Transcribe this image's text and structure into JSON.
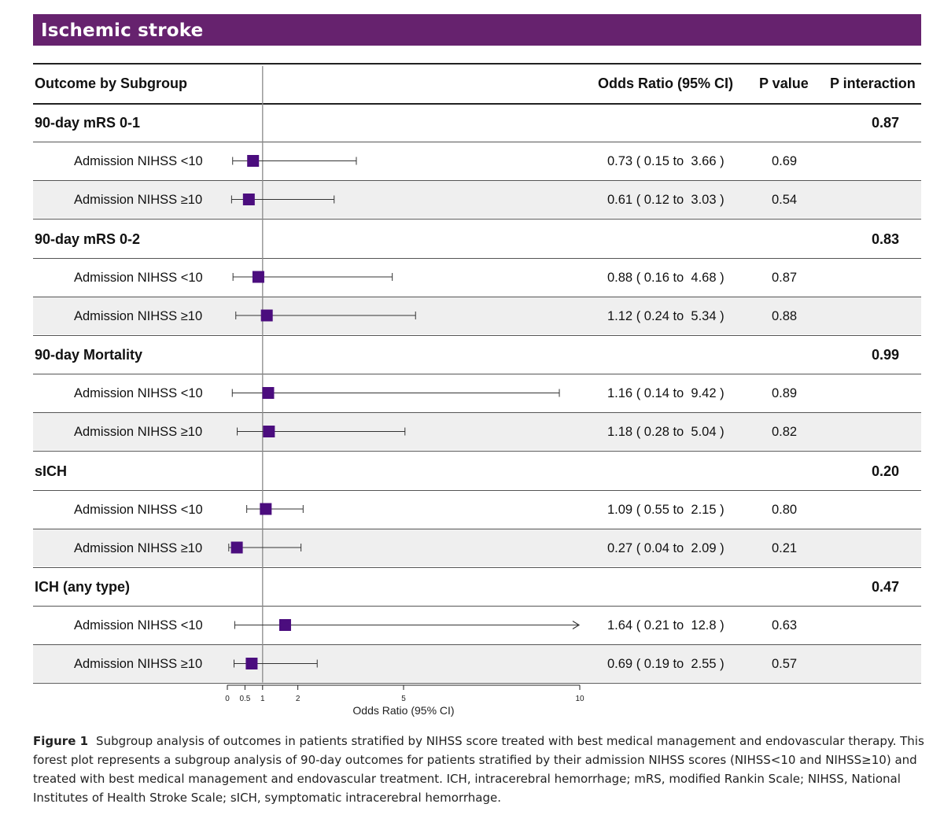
{
  "banner": "Ischemic stroke",
  "header": {
    "outcome": "Outcome by Subgroup",
    "or": "Odds Ratio (95% CI)",
    "p": "P value",
    "pint": "P interaction"
  },
  "colors": {
    "banner": "#66226e",
    "marker": "#4b0d7e",
    "band": "#efefef"
  },
  "sections": [
    {
      "title": "90-day mRS 0-1",
      "p_interaction": "0.87",
      "rows": [
        {
          "label": "Admission NIHSS <10",
          "or_text": "0.73 ( 0.15 to  3.66 )",
          "p": "0.69"
        },
        {
          "label": "Admission NIHSS ≥10",
          "or_text": "0.61 ( 0.12 to  3.03 )",
          "p": "0.54"
        }
      ]
    },
    {
      "title": "90-day mRS 0-2",
      "p_interaction": "0.83",
      "rows": [
        {
          "label": "Admission NIHSS <10",
          "or_text": "0.88 ( 0.16 to  4.68 )",
          "p": "0.87"
        },
        {
          "label": "Admission NIHSS ≥10",
          "or_text": "1.12 ( 0.24 to  5.34 )",
          "p": "0.88"
        }
      ]
    },
    {
      "title": "90-day Mortality",
      "p_interaction": "0.99",
      "rows": [
        {
          "label": "Admission NIHSS <10",
          "or_text": "1.16 ( 0.14 to  9.42 )",
          "p": "0.89"
        },
        {
          "label": "Admission NIHSS ≥10",
          "or_text": "1.18 ( 0.28 to  5.04 )",
          "p": "0.82"
        }
      ]
    },
    {
      "title": "sICH",
      "p_interaction": "0.20",
      "rows": [
        {
          "label": "Admission NIHSS <10",
          "or_text": "1.09 ( 0.55 to  2.15 )",
          "p": "0.80"
        },
        {
          "label": "Admission NIHSS ≥10",
          "or_text": "0.27 ( 0.04 to  2.09 )",
          "p": "0.21"
        }
      ]
    },
    {
      "title": "ICH (any type)",
      "p_interaction": "0.47",
      "rows": [
        {
          "label": "Admission NIHSS <10",
          "or_text": "1.64 ( 0.21 to  12.8 )",
          "p": "0.63"
        },
        {
          "label": "Admission NIHSS ≥10",
          "or_text": "0.69 ( 0.19 to  2.55 )",
          "p": "0.57"
        }
      ]
    }
  ],
  "chart_data": {
    "type": "forest",
    "xlabel": "Odds Ratio (95% CI)",
    "x_ticks": [
      0,
      0.5,
      1,
      2,
      5,
      10
    ],
    "x_tick_labels": [
      "0",
      "0.5",
      "1",
      "2",
      "5",
      "10"
    ],
    "xlim": [
      0,
      10
    ],
    "reference_line": 1,
    "series": [
      {
        "outcome": "90-day mRS 0-1",
        "subgroup": "Admission NIHSS <10",
        "or": 0.73,
        "lower": 0.15,
        "upper": 3.66,
        "p": 0.69
      },
      {
        "outcome": "90-day mRS 0-1",
        "subgroup": "Admission NIHSS ≥10",
        "or": 0.61,
        "lower": 0.12,
        "upper": 3.03,
        "p": 0.54
      },
      {
        "outcome": "90-day mRS 0-2",
        "subgroup": "Admission NIHSS <10",
        "or": 0.88,
        "lower": 0.16,
        "upper": 4.68,
        "p": 0.87
      },
      {
        "outcome": "90-day mRS 0-2",
        "subgroup": "Admission NIHSS ≥10",
        "or": 1.12,
        "lower": 0.24,
        "upper": 5.34,
        "p": 0.88
      },
      {
        "outcome": "90-day Mortality",
        "subgroup": "Admission NIHSS <10",
        "or": 1.16,
        "lower": 0.14,
        "upper": 9.42,
        "p": 0.89
      },
      {
        "outcome": "90-day Mortality",
        "subgroup": "Admission NIHSS ≥10",
        "or": 1.18,
        "lower": 0.28,
        "upper": 5.04,
        "p": 0.82
      },
      {
        "outcome": "sICH",
        "subgroup": "Admission NIHSS <10",
        "or": 1.09,
        "lower": 0.55,
        "upper": 2.15,
        "p": 0.8
      },
      {
        "outcome": "sICH",
        "subgroup": "Admission NIHSS ≥10",
        "or": 0.27,
        "lower": 0.04,
        "upper": 2.09,
        "p": 0.21
      },
      {
        "outcome": "ICH (any type)",
        "subgroup": "Admission NIHSS <10",
        "or": 1.64,
        "lower": 0.21,
        "upper": 12.8,
        "p": 0.63,
        "upper_truncated": true
      },
      {
        "outcome": "ICH (any type)",
        "subgroup": "Admission NIHSS ≥10",
        "or": 0.69,
        "lower": 0.19,
        "upper": 2.55,
        "p": 0.57
      }
    ]
  },
  "caption": {
    "figure_label": "Figure 1",
    "text": "Subgroup analysis of outcomes in patients stratified by NIHSS score treated with best medical management and endovascular therapy. This forest plot represents a subgroup analysis of 90-day outcomes for patients stratified by their admission NIHSS scores (NIHSS<10 and NIHSS≥10) and treated with best medical management and endovascular treatment. ICH, intracerebral hemorrhage; mRS, modified Rankin Scale; NIHSS, National Institutes of Health Stroke Scale; sICH, symptomatic intracerebral hemorrhage."
  }
}
